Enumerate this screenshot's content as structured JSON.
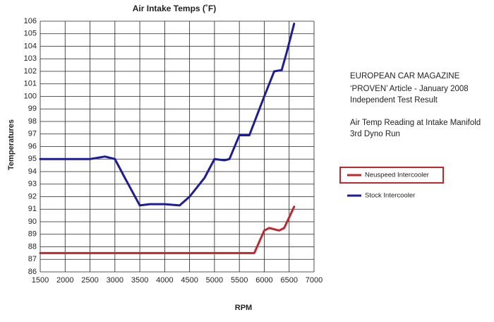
{
  "chart_data": {
    "type": "line",
    "title": "Air Intake Temps (˚F)",
    "x_label": "RPM",
    "y_label": "Temperatures",
    "xlim": [
      1500,
      7000
    ],
    "xticks": [
      1500,
      2000,
      2500,
      3000,
      3500,
      4000,
      4500,
      5000,
      5500,
      6000,
      6500,
      7000
    ],
    "ylim": [
      86,
      106
    ],
    "yticks": [
      86,
      87,
      88,
      89,
      90,
      91,
      92,
      93,
      94,
      95,
      96,
      97,
      98,
      99,
      100,
      101,
      102,
      103,
      104,
      105,
      106
    ],
    "grid": true,
    "series": [
      {
        "name": "Neuspeed Intercooler",
        "color": "#c0282d",
        "x": [
          1500,
          5600,
          5800,
          6000,
          6100,
          6300,
          6400,
          6600
        ],
        "values": [
          87.5,
          87.5,
          87.5,
          89.3,
          89.5,
          89.3,
          89.5,
          91.2
        ]
      },
      {
        "name": "Stock Intercooler",
        "color": "#1c1c9c",
        "x": [
          1500,
          2500,
          2800,
          3000,
          3200,
          3500,
          3700,
          4000,
          4300,
          4500,
          4800,
          5000,
          5200,
          5300,
          5500,
          5700,
          6000,
          6200,
          6350,
          6450,
          6600
        ],
        "values": [
          95,
          95,
          95.2,
          95,
          93.5,
          91.3,
          91.4,
          91.4,
          91.3,
          92,
          93.5,
          95,
          94.9,
          95,
          96.9,
          96.9,
          100,
          102,
          102.1,
          103.5,
          105.8
        ]
      }
    ],
    "notes": [
      "EUROPEAN CAR MAGAZINE",
      "‘PROVEN’ Article - January 2008",
      "Independent Test Result",
      "Air Temp Reading at Intake Manifold",
      "3rd Dyno Run"
    ]
  }
}
